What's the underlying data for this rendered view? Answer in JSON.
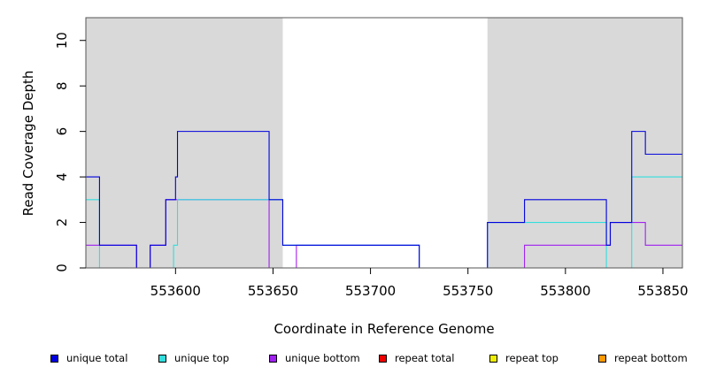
{
  "chart_data": {
    "type": "line",
    "xlabel": "Coordinate in Reference Genome",
    "ylabel": "Read Coverage Depth",
    "xlim": [
      553554,
      553860
    ],
    "ylim": [
      0,
      11
    ],
    "x_ticks": [
      553600,
      553650,
      553700,
      553750,
      553800,
      553850
    ],
    "y_ticks": [
      0,
      2,
      4,
      6,
      8,
      10
    ],
    "shaded_regions": [
      [
        553554,
        553655
      ],
      [
        553760,
        553860
      ]
    ],
    "shade_color": "#d9d9d9",
    "series": [
      {
        "name": "unique total",
        "color": "#0000dd",
        "steps": [
          [
            553554,
            4
          ],
          [
            553561,
            1
          ],
          [
            553580,
            0
          ],
          [
            553587,
            1
          ],
          [
            553595,
            3
          ],
          [
            553600,
            4
          ],
          [
            553601,
            6
          ],
          [
            553648,
            3
          ],
          [
            553655,
            1
          ],
          [
            553725,
            0
          ],
          [
            553760,
            2
          ],
          [
            553779,
            2
          ],
          [
            553779,
            3
          ],
          [
            553821,
            1
          ],
          [
            553823,
            2
          ],
          [
            553834,
            6
          ],
          [
            553841,
            5
          ],
          [
            553860,
            5
          ]
        ]
      },
      {
        "name": "unique top",
        "color": "#33dddd",
        "steps": [
          [
            553554,
            3
          ],
          [
            553561,
            0
          ],
          [
            553599,
            1
          ],
          [
            553601,
            3
          ],
          [
            553648,
            3
          ],
          [
            553655,
            1
          ],
          [
            553725,
            0
          ],
          [
            553760,
            2
          ],
          [
            553821,
            0
          ],
          [
            553834,
            4
          ],
          [
            553860,
            4
          ]
        ]
      },
      {
        "name": "unique bottom",
        "color": "#a020f0",
        "steps": [
          [
            553554,
            1
          ],
          [
            553561,
            1
          ],
          [
            553580,
            0
          ],
          [
            553587,
            1
          ],
          [
            553595,
            3
          ],
          [
            553648,
            0
          ],
          [
            553662,
            1
          ],
          [
            553725,
            0
          ],
          [
            553779,
            1
          ],
          [
            553823,
            2
          ],
          [
            553841,
            1
          ],
          [
            553860,
            1
          ]
        ]
      },
      {
        "name": "repeat total",
        "color": "#ee0000",
        "steps": [
          [
            553554,
            0
          ],
          [
            553860,
            0
          ]
        ]
      },
      {
        "name": "repeat top",
        "color": "#eeee00",
        "steps": [
          [
            553554,
            0
          ],
          [
            553860,
            0
          ]
        ]
      },
      {
        "name": "repeat bottom",
        "color": "#ff9900",
        "steps": [
          [
            553554,
            0
          ],
          [
            553860,
            0
          ]
        ]
      }
    ],
    "legend_position": "bottom"
  },
  "legend": [
    {
      "label": "unique total",
      "color": "#0000dd"
    },
    {
      "label": "unique top",
      "color": "#33dddd"
    },
    {
      "label": "unique bottom",
      "color": "#a020f0"
    },
    {
      "label": "repeat total",
      "color": "#ee0000"
    },
    {
      "label": "repeat top",
      "color": "#eeee00"
    },
    {
      "label": "repeat bottom",
      "color": "#ff9900"
    }
  ]
}
